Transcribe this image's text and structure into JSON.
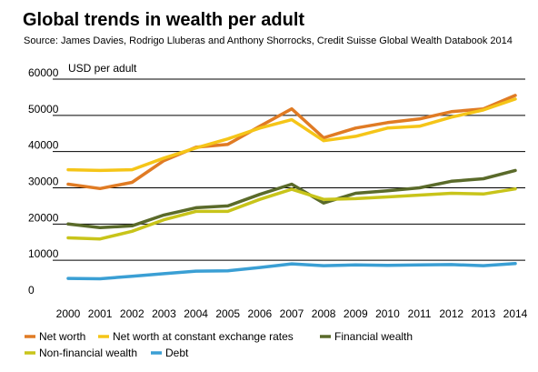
{
  "title": "Global trends in wealth per adult",
  "source": "Source: James Davies, Rodrigo Lluberas and Anthony Shorrocks, Credit Suisse Global Wealth Databook 2014",
  "chart_data": {
    "type": "line",
    "unit_label": "USD per adult",
    "x": [
      "2000",
      "2001",
      "2002",
      "2003",
      "2004",
      "2005",
      "2006",
      "2007",
      "2008",
      "2009",
      "2010",
      "2011",
      "2012",
      "2013",
      "2014"
    ],
    "ylim": [
      0,
      60000
    ],
    "yticks": [
      0,
      10000,
      20000,
      30000,
      40000,
      50000,
      60000
    ],
    "ytick_labels": [
      "0",
      "10000",
      "20000",
      "30000",
      "40000",
      "50000",
      "60000"
    ],
    "grid": true,
    "legend_position": "bottom",
    "series": [
      {
        "name": "Net worth",
        "color": "#e07b24",
        "values": [
          31000,
          29800,
          31500,
          37500,
          41200,
          42000,
          47000,
          51800,
          43800,
          46500,
          48000,
          49000,
          51000,
          51800,
          55500
        ]
      },
      {
        "name": "Net worth at constant exchange rates",
        "color": "#f5c518",
        "values": [
          35000,
          34800,
          35000,
          38200,
          41000,
          43500,
          46500,
          48800,
          43000,
          44200,
          46500,
          47000,
          49500,
          51500,
          54500
        ]
      },
      {
        "name": "Financial wealth",
        "color": "#5a6a2a",
        "values": [
          20000,
          19000,
          19500,
          22500,
          24500,
          25000,
          28200,
          31000,
          25800,
          28500,
          29200,
          30000,
          31800,
          32500,
          34800
        ]
      },
      {
        "name": "Non-financial wealth",
        "color": "#c8c41a",
        "values": [
          16200,
          15900,
          18000,
          21200,
          23500,
          23500,
          26800,
          29600,
          26800,
          27000,
          27500,
          28000,
          28500,
          28300,
          29700
        ]
      },
      {
        "name": "Debt",
        "color": "#3a9fd4",
        "values": [
          5000,
          4900,
          5600,
          6300,
          7000,
          7100,
          8000,
          9000,
          8500,
          8700,
          8600,
          8700,
          8800,
          8500,
          9100
        ]
      }
    ]
  }
}
